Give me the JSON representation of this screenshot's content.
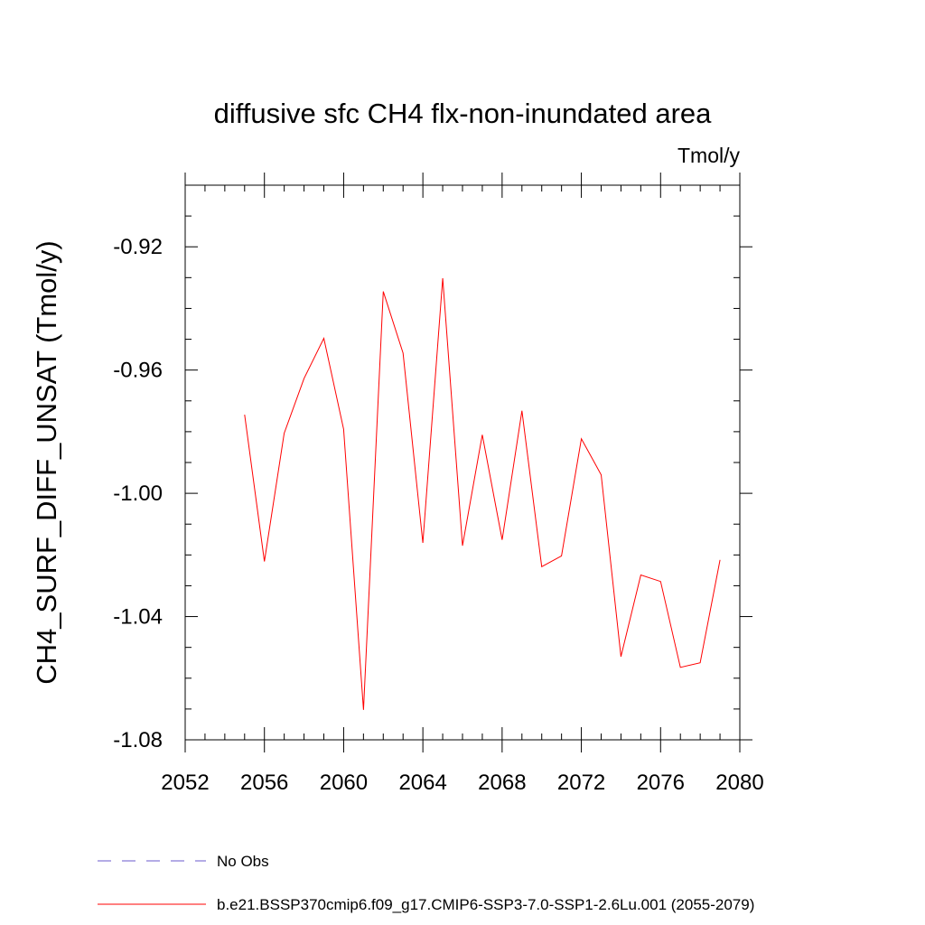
{
  "chart_data": {
    "type": "line",
    "title": "diffusive sfc CH4 flx-non-inundated area",
    "units": "Tmol/y",
    "ylabel": "CH4_SURF_DIFF_UNSAT  (Tmol/y)",
    "xlabel": "",
    "xlim": [
      2052,
      2080
    ],
    "ylim": [
      -1.08,
      -0.9
    ],
    "x_major_ticks": [
      2052,
      2056,
      2060,
      2064,
      2068,
      2072,
      2076,
      2080
    ],
    "x_tick_labels": [
      "2052",
      "2056",
      "2060",
      "2064",
      "2068",
      "2072",
      "2076",
      "2080"
    ],
    "x_minor_step": 1,
    "y_major_ticks": [
      -1.08,
      -1.04,
      -1.0,
      -0.96,
      -0.92
    ],
    "y_tick_labels": [
      "-1.08",
      "-1.04",
      "-1.00",
      "-0.96",
      "-0.92"
    ],
    "y_minor_step": 0.01,
    "grid": false,
    "legend_position": "bottom",
    "series": [
      {
        "name": "b.e21.BSSP370cmip6.f09_g17.CMIP6-SSP3-7.0-SSP1-2.6Lu.001 (2055-2079)",
        "color": "#ff0000",
        "style": "solid",
        "x": [
          2055,
          2056,
          2057,
          2058,
          2059,
          2060,
          2061,
          2062,
          2063,
          2064,
          2065,
          2066,
          2067,
          2068,
          2069,
          2070,
          2071,
          2072,
          2073,
          2074,
          2075,
          2076,
          2077,
          2078,
          2079
        ],
        "values": [
          -0.9745,
          -1.0221,
          -0.9805,
          -0.9627,
          -0.9497,
          -0.9792,
          -1.0703,
          -0.9345,
          -0.9545,
          -1.0161,
          -0.9302,
          -1.017,
          -0.981,
          -1.0151,
          -0.9732,
          -1.0238,
          -1.0203,
          -0.9823,
          -0.994,
          -1.053,
          -1.0265,
          -1.0286,
          -1.0565,
          -1.055,
          -1.0216
        ]
      }
    ],
    "legend": [
      {
        "label": "No Obs",
        "color": "#6a5acd",
        "style": "dashed"
      },
      {
        "label": "b.e21.BSSP370cmip6.f09_g17.CMIP6-SSP3-7.0-SSP1-2.6Lu.001 (2055-2079)",
        "color": "#ff0000",
        "style": "solid"
      }
    ]
  }
}
